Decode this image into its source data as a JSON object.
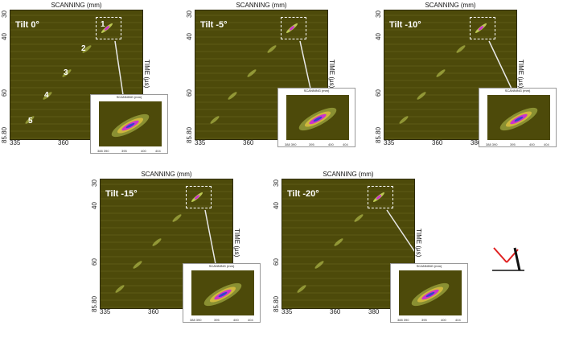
{
  "panels": [
    {
      "tilt": "Tilt 0°",
      "numbers": [
        "1",
        "2",
        "3",
        "4",
        "5"
      ]
    },
    {
      "tilt": "Tilt -5°"
    },
    {
      "tilt": "Tilt -10°"
    },
    {
      "tilt": "Tilt -15°"
    },
    {
      "tilt": "Tilt -20°"
    }
  ],
  "axes": {
    "x_title": "SCANNING (mm)",
    "y_title": "TIME (µs)",
    "y_ticks": [
      "30",
      "40",
      "60",
      "85.80"
    ],
    "x_ticks": [
      "335",
      "360",
      "380"
    ],
    "inset_x_ticks": [
      "388 390",
      "395",
      "400",
      "404"
    ]
  },
  "colors": {
    "background": "#4d4a0a",
    "echo": "#c8d65a",
    "peak": "#cc33cc",
    "core": "#3344cc",
    "frame": "#ffffff",
    "beam": "#e02020"
  }
}
